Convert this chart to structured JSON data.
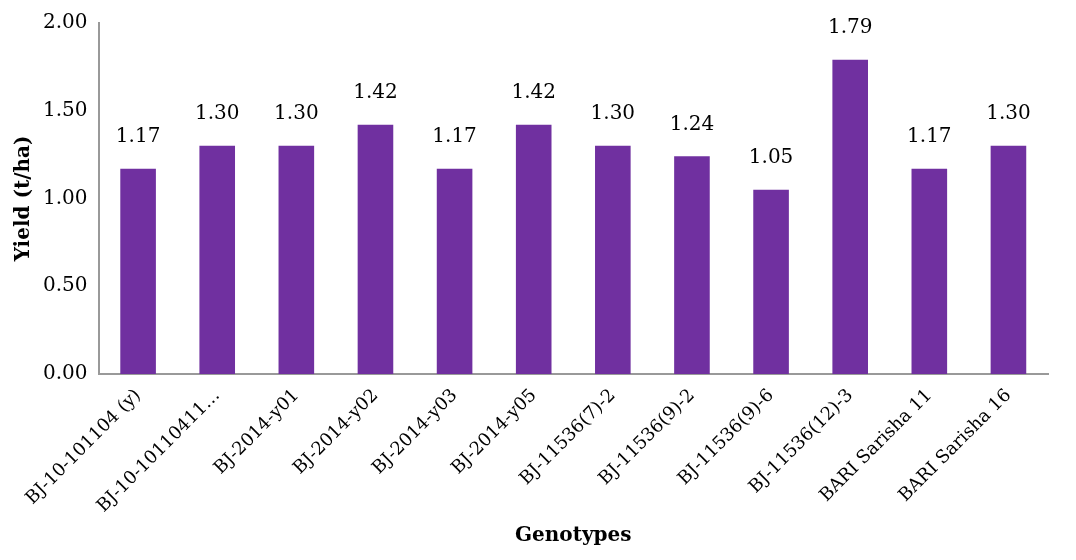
{
  "chart_data": {
    "type": "bar",
    "xlabel": "Genotypes",
    "ylabel": "Yield (t/ha)",
    "categories": [
      "BJ-10-101104 (y)",
      "BJ-10-10110411…",
      "BJ-2014-y01",
      "BJ-2014-y02",
      "BJ-2014-y03",
      "BJ-2014-y05",
      "BJ-11536(7)-2",
      "BJ-11536(9)-2",
      "BJ-11536(9)-6",
      "BJ-11536(12)-3",
      "BARI Sarisha 11",
      "BARI Sarisha 16"
    ],
    "values": [
      1.17,
      1.3,
      1.3,
      1.42,
      1.17,
      1.42,
      1.3,
      1.24,
      1.05,
      1.79,
      1.17,
      1.3
    ],
    "color": "#7030a0",
    "ylim": [
      0,
      2
    ],
    "yticks": [
      {
        "value": 0,
        "label": "0.00"
      },
      {
        "value": 0.5,
        "label": "0.50"
      },
      {
        "value": 1,
        "label": "1.00"
      },
      {
        "value": 1.5,
        "label": "1.50"
      },
      {
        "value": 2,
        "label": "2.00"
      }
    ],
    "value_labels": [
      "1.17",
      "1.30",
      "1.30",
      "1.42",
      "1.17",
      "1.42",
      "1.30",
      "1.24",
      "1.05",
      "1.79",
      "1.17",
      "1.30"
    ],
    "grid": false,
    "legend": false
  }
}
